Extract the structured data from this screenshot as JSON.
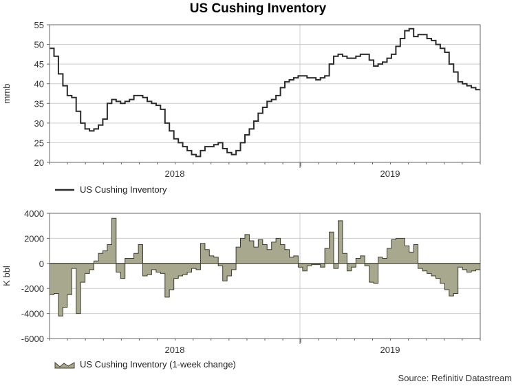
{
  "title": "US Cushing Inventory",
  "source": "Source: Refinitiv Datastream",
  "colors": {
    "line": "#2b2b2b",
    "area_fill": "#a8a88e",
    "area_stroke": "#3d3d2d",
    "grid": "#cccccc",
    "frame": "#666666"
  },
  "chart_data": [
    {
      "type": "line",
      "title": "US Cushing Inventory",
      "ylabel": "mmb",
      "xlabel": "",
      "ylim": [
        20,
        55
      ],
      "yticks": [
        20,
        25,
        30,
        35,
        40,
        45,
        50,
        55
      ],
      "xlim": [
        2017.37,
        2019.37
      ],
      "xtick_labels": [
        "2018",
        "2019"
      ],
      "legend": "US Cushing Inventory",
      "legend_position": "bottom-left",
      "series": [
        {
          "name": "US Cushing Inventory",
          "weekly_values": [
            49,
            47,
            42.5,
            39.5,
            37,
            36.5,
            33,
            30,
            28.5,
            28,
            28.5,
            29.5,
            31,
            35,
            36,
            35.5,
            35,
            35.5,
            36,
            37,
            37,
            36.5,
            35.5,
            35,
            34.5,
            33.5,
            30,
            28,
            26,
            25,
            24,
            23,
            22,
            21.5,
            23,
            24,
            24,
            24.5,
            25,
            23.5,
            22.5,
            22,
            23,
            25,
            27,
            28.5,
            30.5,
            32.5,
            34,
            35.5,
            36,
            37,
            39,
            40.5,
            41,
            41.5,
            42,
            42,
            41.5,
            41.5,
            41,
            41.5,
            42,
            45,
            47,
            47.5,
            47,
            46.5,
            46.5,
            47,
            47.5,
            47.5,
            46,
            44.5,
            45,
            45.5,
            46.5,
            47.5,
            49.5,
            51.5,
            53.5,
            54,
            52,
            52.5,
            52.5,
            51.5,
            51,
            50,
            49,
            48,
            45,
            43,
            40.5,
            40,
            39.5,
            39,
            38.5
          ]
        }
      ]
    },
    {
      "type": "area",
      "title": "US Cushing Inventory (1-week change)",
      "ylabel": "K bbl",
      "xlabel": "",
      "ylim": [
        -6000,
        4000
      ],
      "yticks": [
        -6000,
        -4000,
        -2000,
        0,
        2000,
        4000
      ],
      "xlim": [
        2017.37,
        2019.37
      ],
      "xtick_labels": [
        "2018",
        "2019"
      ],
      "legend": "US Cushing Inventory (1-week change)",
      "legend_position": "bottom-left",
      "series": [
        {
          "name": "US Cushing Inventory (1-week change)",
          "weekly_values": [
            -2500,
            -2400,
            -4200,
            -3500,
            -2500,
            -400,
            -4000,
            -1500,
            -800,
            -500,
            200,
            800,
            1000,
            1500,
            3600,
            -700,
            -1200,
            400,
            400,
            800,
            1500,
            -1000,
            -900,
            -500,
            -700,
            -800,
            -2700,
            -2100,
            -1200,
            -1000,
            -900,
            -700,
            -400,
            -500,
            1600,
            1100,
            600,
            500,
            -200,
            -1400,
            -1000,
            -500,
            1300,
            2000,
            2300,
            1800,
            1300,
            1900,
            1500,
            1100,
            1700,
            2000,
            1500,
            1100,
            500,
            600,
            -300,
            -600,
            -200,
            -100,
            -100,
            -300,
            1200,
            2500,
            -400,
            3400,
            800,
            -600,
            -300,
            400,
            600,
            -200,
            -1500,
            -1600,
            500,
            400,
            1200,
            1900,
            2000,
            2000,
            1400,
            900,
            1500,
            -400,
            -600,
            -800,
            -1000,
            -1200,
            -1600,
            -2100,
            -2600,
            -2400,
            -300,
            -500,
            -700,
            -600,
            -500
          ]
        }
      ]
    }
  ]
}
